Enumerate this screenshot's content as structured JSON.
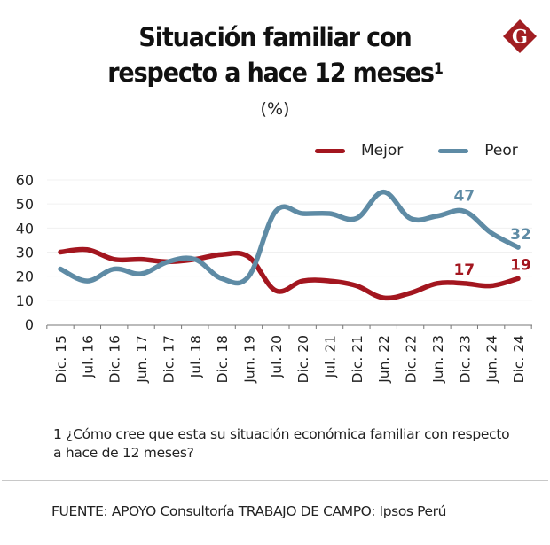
{
  "header": {
    "title_line1": "Situación familiar con",
    "title_line2": "respecto a hace 12 meses",
    "title_superscript": "1",
    "subtitle": "(%)",
    "logo_letter": "G",
    "logo_color": "#A11E22"
  },
  "footnote": "1 ¿Cómo cree que esta su situación económica familiar con respecto a hace de 12 meses?",
  "source": "FUENTE: APOYO Consultoría  TRABAJO DE CAMPO: Ipsos Perú",
  "chart_data": {
    "type": "line",
    "title": "Situación familiar con respecto a hace 12 meses",
    "subtitle": "(%)",
    "xlabel": "",
    "ylabel": "",
    "ylim": [
      0,
      60
    ],
    "yticks": [
      0,
      10,
      20,
      30,
      40,
      50,
      60
    ],
    "grid": true,
    "legend_position": "top-right",
    "categories": [
      "Dic. 15",
      "Jul. 16",
      "Dic. 16",
      "Jun. 17",
      "Dic. 17",
      "Jul. 18",
      "Dic. 18",
      "Jun. 19",
      "Jul. 20",
      "Dic. 20",
      "Jul. 21",
      "Dic. 21",
      "Jun. 22",
      "Dic. 22",
      "Jun. 23",
      "Dic. 23",
      "Jun. 24",
      "Dic. 24"
    ],
    "series": [
      {
        "name": "Mejor",
        "color": "#A3161F",
        "values": [
          30,
          31,
          27,
          27,
          26,
          27,
          29,
          28,
          14,
          18,
          18,
          16,
          11,
          13,
          17,
          17,
          16,
          19
        ],
        "labels": {
          "15": "17",
          "17": "19"
        }
      },
      {
        "name": "Peor",
        "color": "#5E8BA5",
        "values": [
          23,
          18,
          23,
          21,
          26,
          27,
          19,
          20,
          47,
          46,
          46,
          44,
          55,
          44,
          45,
          47,
          38,
          32
        ],
        "labels": {
          "15": "47",
          "17": "32"
        }
      }
    ]
  }
}
